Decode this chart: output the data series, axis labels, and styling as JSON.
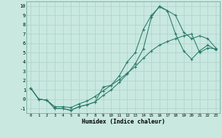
{
  "xlabel": "Humidex (Indice chaleur)",
  "background_color": "#c8e8e0",
  "grid_color": "#b0d4cc",
  "line_color": "#2a7a6a",
  "xlim": [
    -0.5,
    23.5
  ],
  "ylim": [
    -1.5,
    10.5
  ],
  "xticks": [
    0,
    1,
    2,
    3,
    4,
    5,
    6,
    7,
    8,
    9,
    10,
    11,
    12,
    13,
    14,
    15,
    16,
    17,
    18,
    19,
    20,
    21,
    22,
    23
  ],
  "yticks": [
    -1,
    0,
    1,
    2,
    3,
    4,
    5,
    6,
    7,
    8,
    9,
    10
  ],
  "line1_x": [
    0,
    1,
    2,
    3,
    4,
    5,
    6,
    7,
    8,
    9,
    10,
    11,
    12,
    13,
    14,
    15,
    16,
    17,
    18,
    19,
    20,
    21,
    22,
    23
  ],
  "line1_y": [
    1.2,
    0.0,
    -0.1,
    -1.0,
    -1.0,
    -1.2,
    -0.8,
    -0.6,
    -0.3,
    1.3,
    1.5,
    2.5,
    4.0,
    5.0,
    7.5,
    9.0,
    9.9,
    9.5,
    9.0,
    7.2,
    6.5,
    6.8,
    6.5,
    5.5
  ],
  "line2_x": [
    0,
    1,
    2,
    3,
    4,
    5,
    6,
    7,
    8,
    9,
    10,
    11,
    12,
    13,
    14,
    15,
    16,
    17,
    18,
    19,
    20,
    21,
    22,
    23
  ],
  "line2_y": [
    1.2,
    0.0,
    -0.1,
    -1.0,
    -1.0,
    -1.2,
    -0.8,
    -0.6,
    -0.3,
    0.4,
    1.0,
    1.8,
    2.7,
    3.8,
    5.4,
    8.8,
    10.0,
    9.5,
    7.0,
    5.2,
    4.3,
    5.2,
    5.8,
    5.3
  ],
  "line3_x": [
    0,
    1,
    2,
    3,
    4,
    5,
    6,
    7,
    8,
    9,
    10,
    11,
    12,
    13,
    14,
    15,
    16,
    17,
    18,
    19,
    20,
    21,
    22,
    23
  ],
  "line3_y": [
    1.2,
    0.0,
    -0.1,
    -0.8,
    -0.8,
    -0.9,
    -0.5,
    -0.2,
    0.3,
    0.9,
    1.5,
    2.1,
    2.8,
    3.5,
    4.4,
    5.2,
    5.8,
    6.2,
    6.5,
    6.8,
    7.0,
    5.0,
    5.5,
    5.4
  ]
}
